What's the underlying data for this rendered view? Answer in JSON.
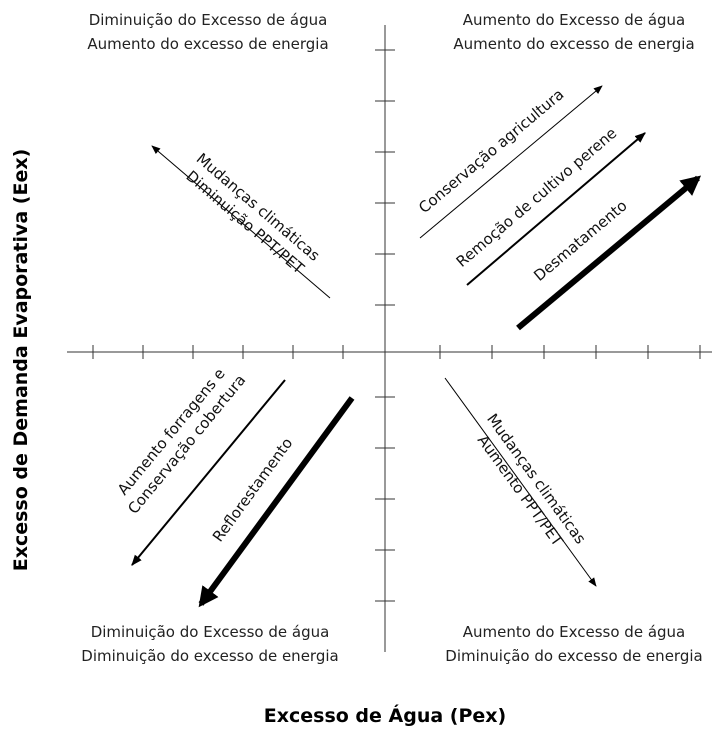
{
  "axes": {
    "x_title": "Excesso de Água (Pex)",
    "y_title": "Excesso de Demanda Evaporativa (Eex)"
  },
  "quadrants": {
    "top_left": [
      "Diminuição do Excesso de água",
      "Aumento do excesso de energia"
    ],
    "top_right": [
      "Aumento do Excesso de água",
      "Aumento do excesso de energia"
    ],
    "bottom_left": [
      "Diminuição do Excesso de água",
      "Diminuição do excesso de energia"
    ],
    "bottom_right": [
      "Aumento do Excesso de água",
      "Diminuição do excesso de energia"
    ]
  },
  "arrows": {
    "climate_dry": [
      "Mudanças climáticas",
      "Diminuição PPT/PET"
    ],
    "conservation_agri": [
      "Conservação agricultura"
    ],
    "perennial_removal": [
      "Remoção de cultivo perene"
    ],
    "deforestation": [
      "Desmatamento"
    ],
    "forage": [
      "Aumento forragens e",
      "Conservação cobertura"
    ],
    "reforestation": [
      "Reflorestamento"
    ],
    "climate_wet": [
      "Mudanças climáticas",
      "Aumento PPT/PET"
    ]
  },
  "colors": {
    "axis": "#333333",
    "arrow": "#000000",
    "text": "#222222"
  }
}
